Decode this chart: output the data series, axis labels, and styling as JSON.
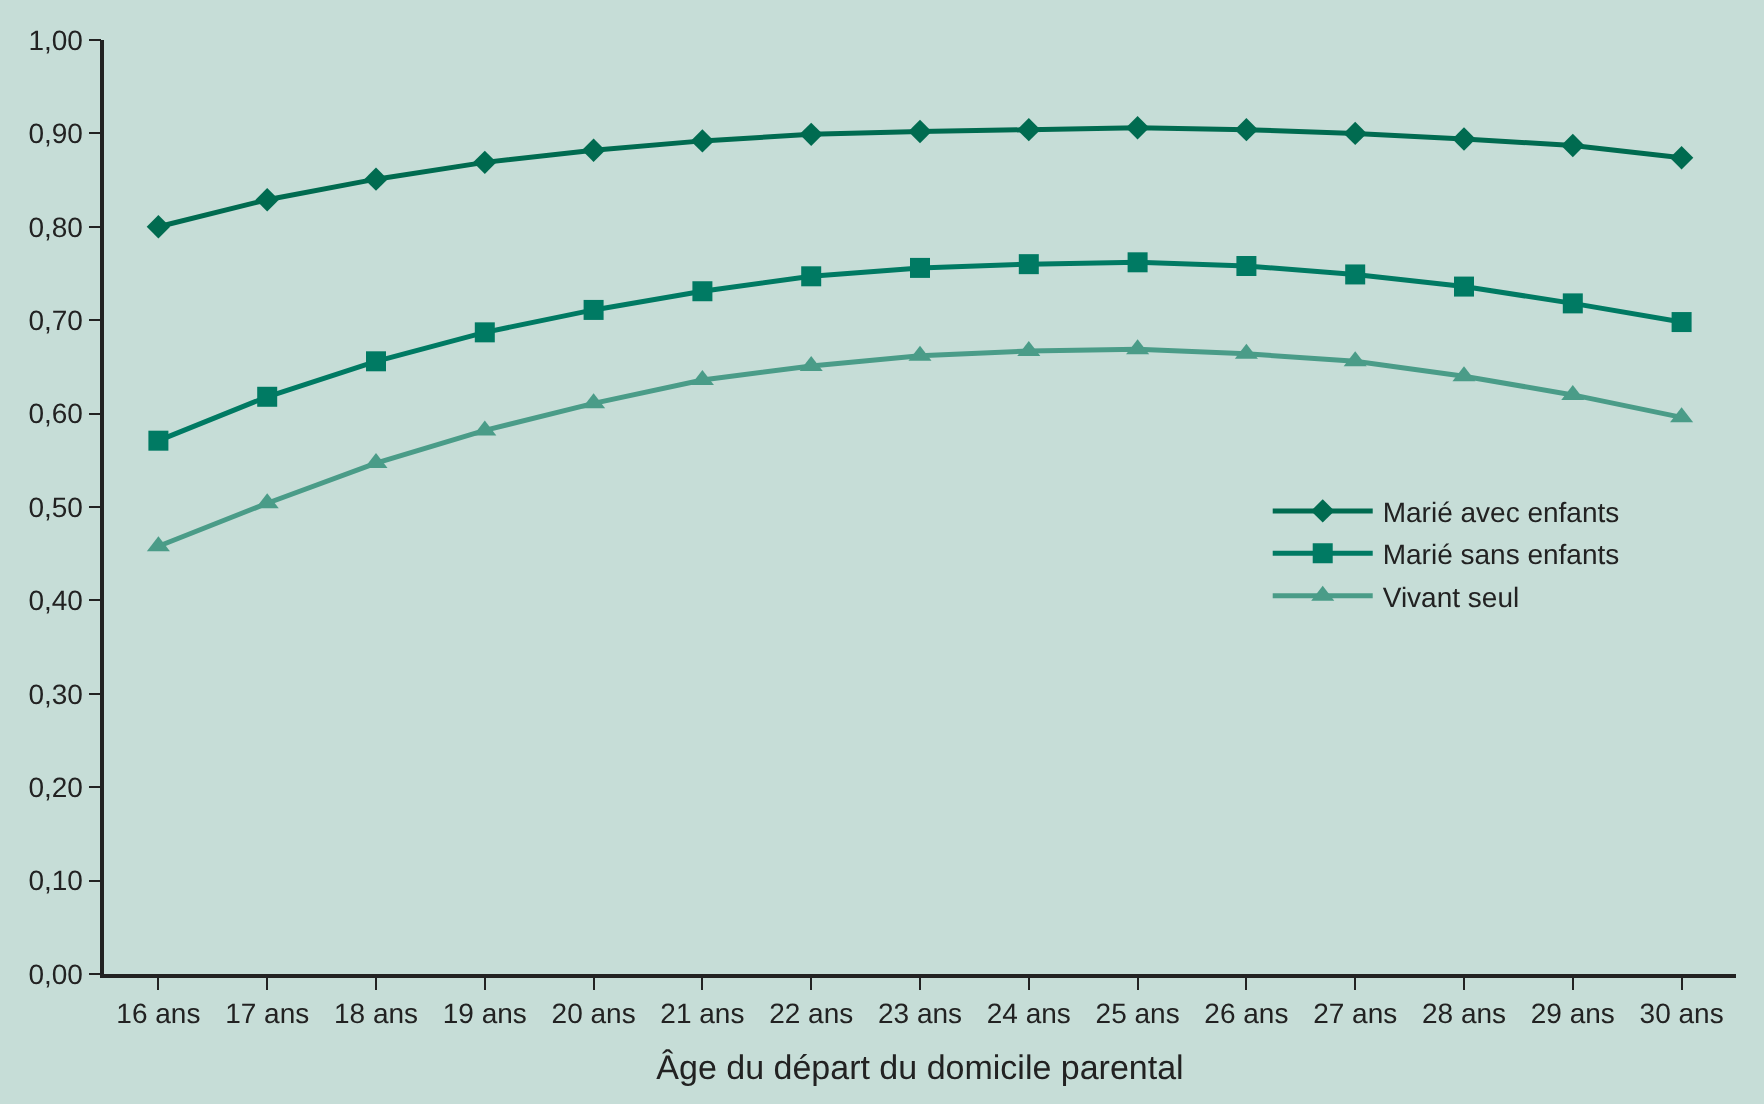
{
  "chart_data": {
    "type": "line",
    "xlabel": "Âge du départ du domicile parental",
    "categories": [
      "16 ans",
      "17 ans",
      "18 ans",
      "19 ans",
      "20 ans",
      "21 ans",
      "22 ans",
      "23 ans",
      "24 ans",
      "25 ans",
      "26 ans",
      "27 ans",
      "28 ans",
      "29 ans",
      "30 ans"
    ],
    "series": [
      {
        "name": "Marié avec enfants",
        "color": "#006b50",
        "marker": "diamond",
        "values": [
          0.8,
          0.829,
          0.851,
          0.869,
          0.882,
          0.892,
          0.899,
          0.902,
          0.904,
          0.906,
          0.904,
          0.9,
          0.894,
          0.887,
          0.874
        ]
      },
      {
        "name": "Marié sans enfants",
        "color": "#007a63",
        "marker": "square",
        "values": [
          0.571,
          0.618,
          0.656,
          0.687,
          0.711,
          0.731,
          0.747,
          0.756,
          0.76,
          0.762,
          0.758,
          0.749,
          0.736,
          0.718,
          0.698
        ]
      },
      {
        "name": "Vivant seul",
        "color": "#4a9c88",
        "marker": "triangle",
        "values": [
          0.458,
          0.504,
          0.547,
          0.582,
          0.611,
          0.636,
          0.651,
          0.662,
          0.667,
          0.669,
          0.664,
          0.656,
          0.64,
          0.62,
          0.596
        ]
      }
    ],
    "ylim": [
      0,
      1
    ],
    "yticks": [
      {
        "value": 0,
        "label": "0,00"
      },
      {
        "value": 0.1,
        "label": "0,10"
      },
      {
        "value": 0.2,
        "label": "0,20"
      },
      {
        "value": 0.3,
        "label": "0,30"
      },
      {
        "value": 0.4,
        "label": "0,40"
      },
      {
        "value": 0.5,
        "label": "0,50"
      },
      {
        "value": 0.6,
        "label": "0,60"
      },
      {
        "value": 0.7,
        "label": "0,70"
      },
      {
        "value": 0.8,
        "label": "0,80"
      },
      {
        "value": 0.9,
        "label": "0,90"
      },
      {
        "value": 1,
        "label": "1,00"
      }
    ],
    "grid": false,
    "legend": "right",
    "line_style": "solid"
  }
}
